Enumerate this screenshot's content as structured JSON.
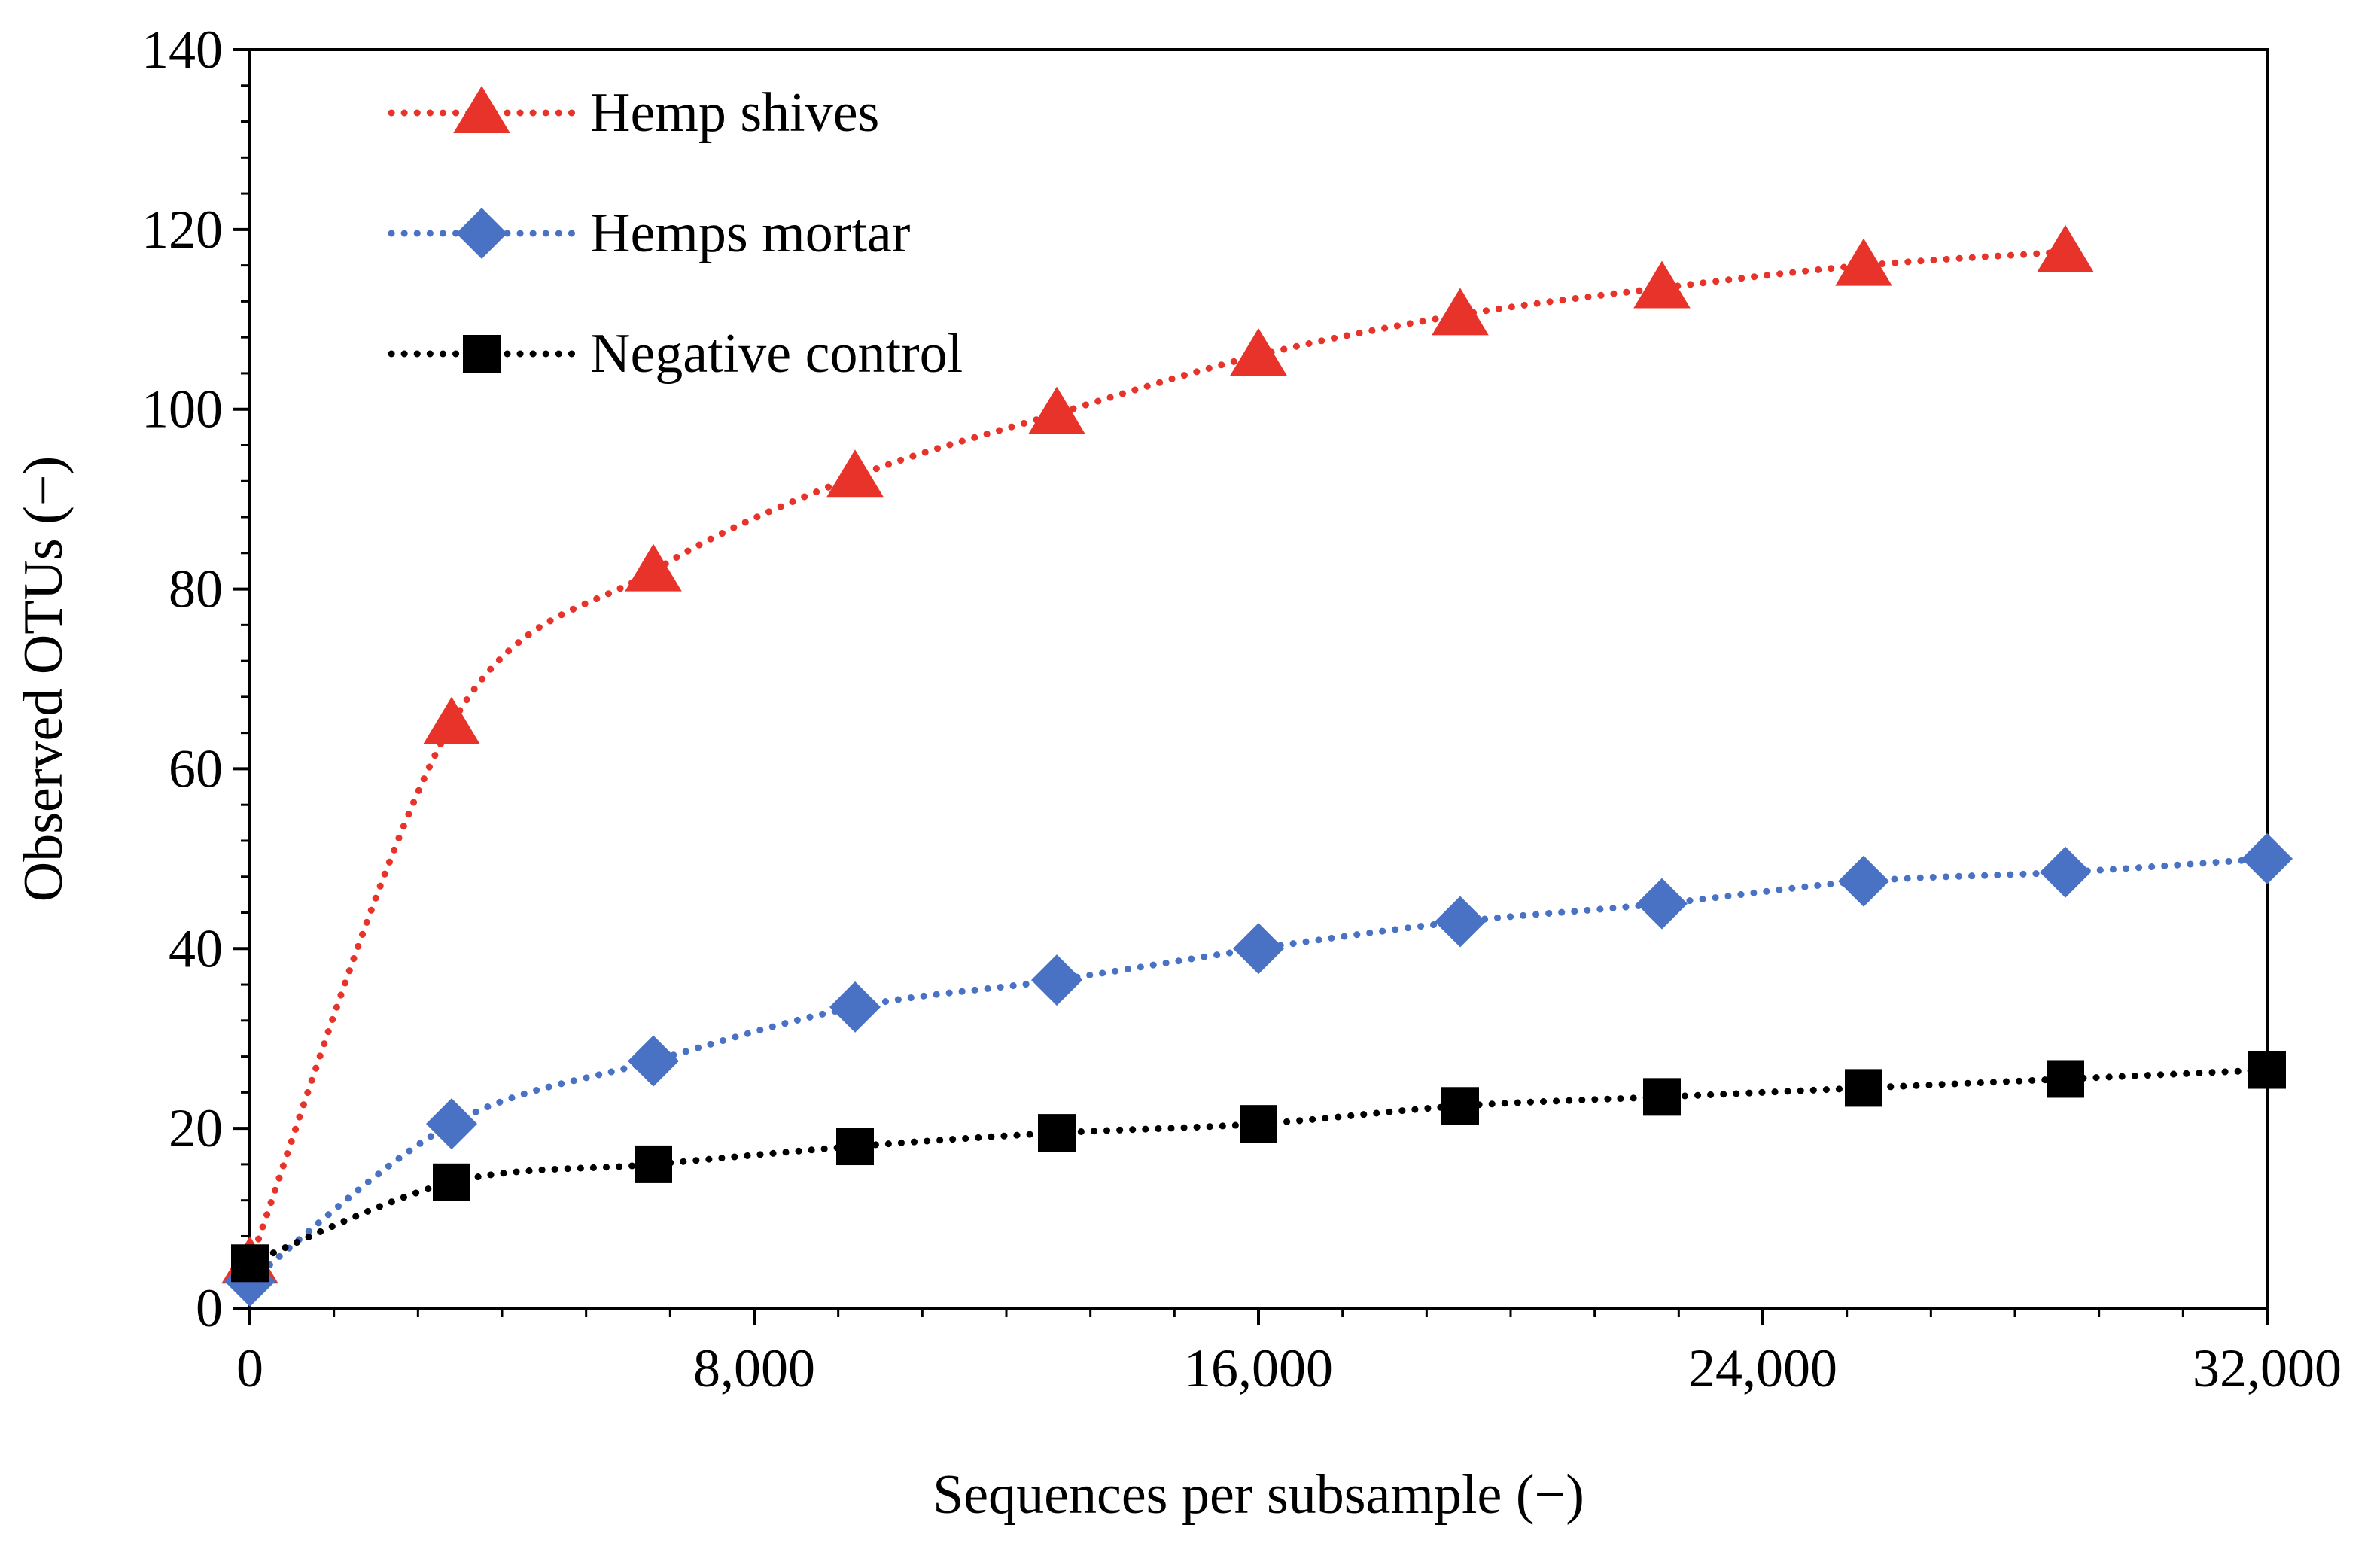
{
  "chart_data": {
    "type": "line",
    "xlabel": "Sequences per subsample (−)",
    "ylabel": "Observed OTUs (−)",
    "xlim": [
      0,
      32000
    ],
    "ylim": [
      0,
      140
    ],
    "x_ticks": [
      "0",
      "8,000",
      "16,000",
      "24,000",
      "32,000"
    ],
    "y_ticks": [
      "0",
      "20",
      "40",
      "60",
      "80",
      "100",
      "120",
      "140"
    ],
    "grid": false,
    "legend_position": "top-left",
    "series": [
      {
        "name": "Hemp shives",
        "color": "#e8332a",
        "marker": "triangle",
        "x": [
          0,
          3200,
          6400,
          9600,
          12800,
          16000,
          19200,
          22400,
          25600,
          28800
        ],
        "y": [
          5,
          65,
          82,
          92.5,
          99.5,
          106,
          110.5,
          113.5,
          116,
          117.5
        ]
      },
      {
        "name": "Hemps mortar",
        "color": "#4a72c4",
        "marker": "diamond",
        "x": [
          0,
          3200,
          6400,
          9600,
          12800,
          16000,
          19200,
          22400,
          25600,
          28800,
          32000
        ],
        "y": [
          3,
          20.5,
          27.5,
          33.5,
          36.5,
          40,
          43,
          45,
          47.5,
          48.5,
          50
        ]
      },
      {
        "name": "Negative control",
        "color": "#000000",
        "marker": "square",
        "x": [
          0,
          3200,
          6400,
          9600,
          12800,
          16000,
          19200,
          22400,
          25600,
          28800,
          32000
        ],
        "y": [
          5,
          14,
          16,
          18,
          19.5,
          20.5,
          22.5,
          23.5,
          24.5,
          25.5,
          26.5
        ]
      }
    ]
  }
}
